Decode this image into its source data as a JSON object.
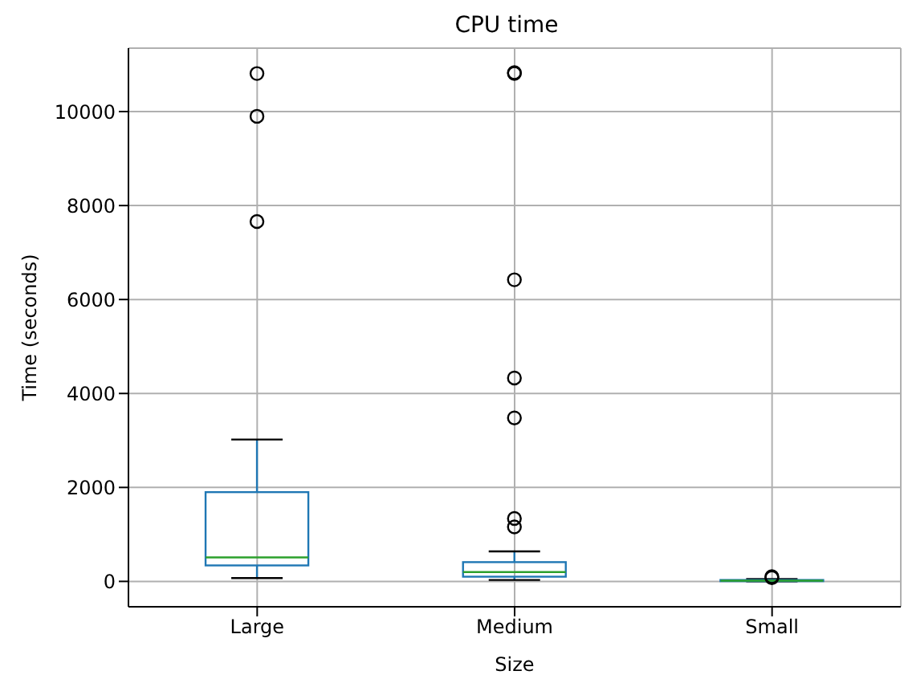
{
  "chart_data": {
    "type": "box",
    "title": "CPU time",
    "xlabel": "Size",
    "ylabel": "Time (seconds)",
    "categories": [
      "Large",
      "Medium",
      "Small"
    ],
    "boxes": [
      {
        "low": 70,
        "q1": 340,
        "median": 510,
        "q3": 1900,
        "high": 3020,
        "outliers": [
          7660,
          9900,
          10810
        ]
      },
      {
        "low": 30,
        "q1": 100,
        "median": 200,
        "q3": 410,
        "high": 640,
        "outliers": [
          1160,
          1340,
          3480,
          4330,
          6420,
          10810,
          10830
        ]
      },
      {
        "low": 0,
        "q1": 5,
        "median": 15,
        "q3": 30,
        "high": 50,
        "outliers": [
          80,
          100
        ]
      }
    ],
    "color": "#1f77b4",
    "ylim": [
      -540,
      11350
    ],
    "yticks": [
      0,
      2000,
      4000,
      6000,
      8000,
      10000
    ],
    "grid": true
  }
}
